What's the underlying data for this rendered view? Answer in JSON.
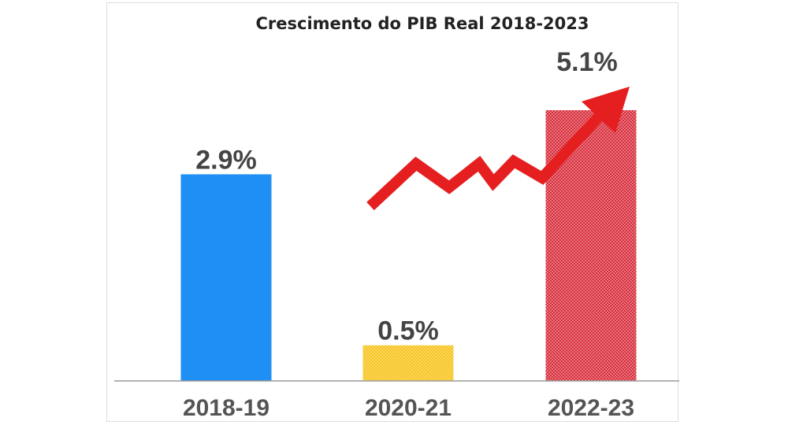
{
  "chart_data": {
    "type": "bar",
    "title": "Crescimento do PIB Real 2018-2023",
    "categories": [
      "2018-19",
      "2020-21",
      "2022-23"
    ],
    "values": [
      2.9,
      0.5,
      5.1
    ],
    "value_labels": [
      "2.9%",
      "0.5%",
      "5.1%"
    ],
    "unit": "%",
    "ylim": [
      0,
      3.8
    ],
    "grid": false,
    "legend": "none",
    "colors": [
      "#1f8ef5",
      "#f5c41b",
      "#d8323f"
    ],
    "arrow_color": "#e51f1f",
    "annotation": "trend-up-arrow"
  }
}
